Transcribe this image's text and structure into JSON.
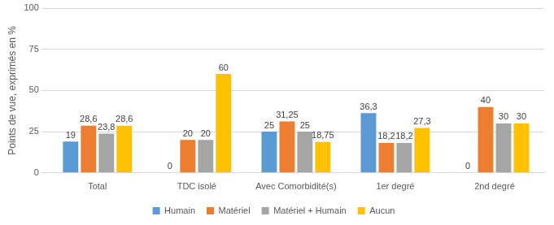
{
  "chart_data": {
    "type": "bar",
    "categories": [
      "Total",
      "TDC isolé",
      "Avec Comorbidité(s)",
      "1er degré",
      "2nd degré"
    ],
    "series": [
      {
        "name": "Humain",
        "color": "#5b9bd5",
        "values": [
          19,
          0,
          25,
          36.3,
          0
        ],
        "value_labels": [
          "19",
          "0",
          "25",
          "36,3",
          "0"
        ]
      },
      {
        "name": "Matériel",
        "color": "#ed7d31",
        "values": [
          28.6,
          20,
          31.25,
          18.2,
          40
        ],
        "value_labels": [
          "28,6",
          "20",
          "31,25",
          "18,2",
          "40"
        ]
      },
      {
        "name": "Matériel + Humain",
        "color": "#a5a5a5",
        "values": [
          23.8,
          20,
          25,
          18.2,
          30
        ],
        "value_labels": [
          "23,8",
          "20",
          "25",
          "18,2",
          "30"
        ]
      },
      {
        "name": "Aucun",
        "color": "#ffc000",
        "values": [
          28.6,
          60,
          18.75,
          27.3,
          30
        ],
        "value_labels": [
          "28,6",
          "60",
          "18,75",
          "27,3",
          "30"
        ]
      }
    ],
    "y_label": "Points de vue, exprimés en %",
    "ylim": [
      0,
      100
    ],
    "yticks": [
      0,
      25,
      50,
      75,
      100
    ],
    "grid": true,
    "legend": "bottom",
    "data_labels": true
  }
}
